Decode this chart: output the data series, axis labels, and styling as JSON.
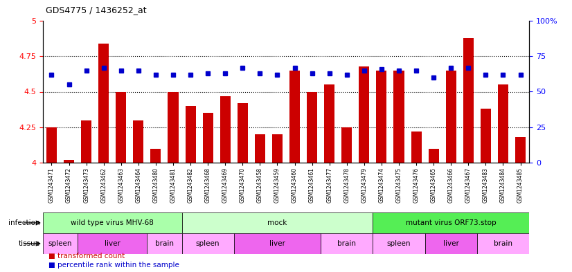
{
  "title": "GDS4775 / 1436252_at",
  "samples": [
    "GSM1243471",
    "GSM1243472",
    "GSM1243473",
    "GSM1243462",
    "GSM1243463",
    "GSM1243464",
    "GSM1243480",
    "GSM1243481",
    "GSM1243482",
    "GSM1243468",
    "GSM1243469",
    "GSM1243470",
    "GSM1243458",
    "GSM1243459",
    "GSM1243460",
    "GSM1243461",
    "GSM1243477",
    "GSM1243478",
    "GSM1243479",
    "GSM1243474",
    "GSM1243475",
    "GSM1243476",
    "GSM1243465",
    "GSM1243466",
    "GSM1243467",
    "GSM1243483",
    "GSM1243484",
    "GSM1243485"
  ],
  "bar_values": [
    4.25,
    4.02,
    4.3,
    4.84,
    4.5,
    4.3,
    4.1,
    4.5,
    4.4,
    4.35,
    4.47,
    4.42,
    4.2,
    4.2,
    4.65,
    4.5,
    4.55,
    4.25,
    4.68,
    4.65,
    4.65,
    4.22,
    4.1,
    4.65,
    4.88,
    4.38,
    4.55,
    4.18
  ],
  "percentile_values": [
    62,
    55,
    65,
    67,
    65,
    65,
    62,
    62,
    62,
    63,
    63,
    67,
    63,
    62,
    67,
    63,
    63,
    62,
    65,
    66,
    65,
    65,
    60,
    67,
    67,
    62,
    62,
    62
  ],
  "ymin": 4.0,
  "ymax": 5.0,
  "yticks": [
    4.0,
    4.25,
    4.5,
    4.75,
    5.0
  ],
  "ytick_labels": [
    "4",
    "4.25",
    "4.5",
    "4.75",
    "5"
  ],
  "y2min": 0,
  "y2max": 100,
  "y2ticks": [
    0,
    25,
    50,
    75,
    100
  ],
  "y2tick_labels": [
    "0",
    "25",
    "50",
    "75",
    "100%"
  ],
  "bar_color": "#CC0000",
  "dot_color": "#0000CC",
  "infection_groups": [
    {
      "label": "wild type virus MHV-68",
      "start": 0,
      "end": 8,
      "color": "#AAFFAA"
    },
    {
      "label": "mock",
      "start": 8,
      "end": 19,
      "color": "#CCFFCC"
    },
    {
      "label": "mutant virus ORF73.stop",
      "start": 19,
      "end": 28,
      "color": "#55EE55"
    }
  ],
  "tissue_groups": [
    {
      "label": "spleen",
      "start": 0,
      "end": 2,
      "color": "#FFAAFF"
    },
    {
      "label": "liver",
      "start": 2,
      "end": 6,
      "color": "#EE66EE"
    },
    {
      "label": "brain",
      "start": 6,
      "end": 8,
      "color": "#FFAAFF"
    },
    {
      "label": "spleen",
      "start": 8,
      "end": 11,
      "color": "#FFAAFF"
    },
    {
      "label": "liver",
      "start": 11,
      "end": 16,
      "color": "#EE66EE"
    },
    {
      "label": "brain",
      "start": 16,
      "end": 19,
      "color": "#FFAAFF"
    },
    {
      "label": "spleen",
      "start": 19,
      "end": 22,
      "color": "#FFAAFF"
    },
    {
      "label": "liver",
      "start": 22,
      "end": 25,
      "color": "#EE66EE"
    },
    {
      "label": "brain",
      "start": 25,
      "end": 28,
      "color": "#FFAAFF"
    }
  ]
}
